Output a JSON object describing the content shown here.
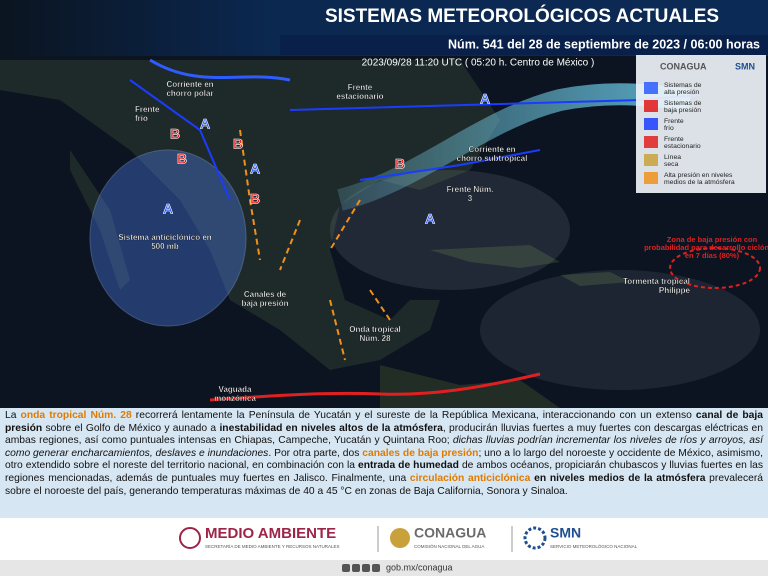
{
  "header": {
    "title": "SISTEMAS METEOROLÓGICOS ACTUALES",
    "subtitle": "Núm. 541 del 28 de septiembre de 2023 / 06:00 horas",
    "timestamp": "2023/09/28 11:20 UTC ( 05:20 h. Centro de México )"
  },
  "map": {
    "labels": [
      "Corriente en chorro polar",
      "Frente estacionario",
      "Frente frío",
      "Corriente en chorro subtropical",
      "Frente Núm. 3",
      "Sistema anticiclónico en 500 mb",
      "Canales de baja presión",
      "Onda tropical Núm. 28",
      "Vaguada monzónica",
      "Tormenta tropical Philippe"
    ],
    "alert": "Zona de baja presión con probabilidad para desarrollo ciclónico en 7 días (80%)",
    "centers": [
      "A",
      "B",
      "B",
      "A",
      "B",
      "A",
      "B",
      "A",
      "B",
      "A"
    ]
  },
  "legend": {
    "logos": [
      "CONAGUA",
      "SMN"
    ],
    "items": [
      "Sistemas de alta presión",
      "Sistemas de baja presión",
      "Frente frío",
      "Frente estacionario",
      "Línea seca",
      "Alta presión en niveles medios de la atmósfera"
    ]
  },
  "text": [
    {
      "text": "La ",
      "style": "plain"
    },
    {
      "text": "onda tropical Núm. 28",
      "style": "orange"
    },
    {
      "text": " recorrerá lentamente la Península de Yucatán y el sureste de la República Mexicana, interaccionando con un extenso ",
      "style": "plain"
    },
    {
      "text": "canal de baja presión",
      "style": "bold"
    },
    {
      "text": " sobre el Golfo de México y aunado a ",
      "style": "plain"
    },
    {
      "text": "inestabilidad en niveles altos de la atmósfera",
      "style": "bold"
    },
    {
      "text": ", producirán lluvias fuertes a muy fuertes con descargas eléctricas en ambas regiones, así como puntuales intensas en Chiapas, Campeche, Yucatán y Quintana Roo; ",
      "style": "plain"
    },
    {
      "text": "dichas lluvias podrían incrementar los niveles de ríos y arroyos, así como generar encharcamientos, deslaves e inundaciones",
      "style": "italic"
    },
    {
      "text": ". Por otra parte, dos ",
      "style": "plain"
    },
    {
      "text": "canales de baja presión",
      "style": "orange"
    },
    {
      "text": "; uno a lo largo del noroeste y occidente de México, asimismo, otro extendido sobre el noreste del territorio nacional, en combinación con la ",
      "style": "plain"
    },
    {
      "text": "entrada de humedad",
      "style": "bold"
    },
    {
      "text": " de ambos océanos, propiciarán chubascos y lluvias fuertes en las regiones mencionadas, además de puntuales muy fuertes en Jalisco. Finalmente, una ",
      "style": "plain"
    },
    {
      "text": "circulación anticiclónica",
      "style": "orange"
    },
    {
      "text": " en niveles medios de la atmósfera",
      "style": "bold"
    },
    {
      "text": " prevalecerá sobre el noroeste del país, generando temperaturas máximas de 40 a 45 °C en zonas de Baja California, Sonora y Sinaloa.",
      "style": "plain"
    }
  ],
  "footer": {
    "logos": [
      {
        "name": "MEDIO AMBIENTE",
        "caption": "SECRETARÍA DE MEDIO AMBIENTE Y RECURSOS NATURALES"
      },
      {
        "name": "CONAGUA",
        "caption": "COMISIÓN NACIONAL DEL AGUA"
      },
      {
        "name": "SMN",
        "caption": "SERVICIO METEOROLÓGICO NACIONAL"
      }
    ],
    "url": "gob.mx/conagua"
  }
}
